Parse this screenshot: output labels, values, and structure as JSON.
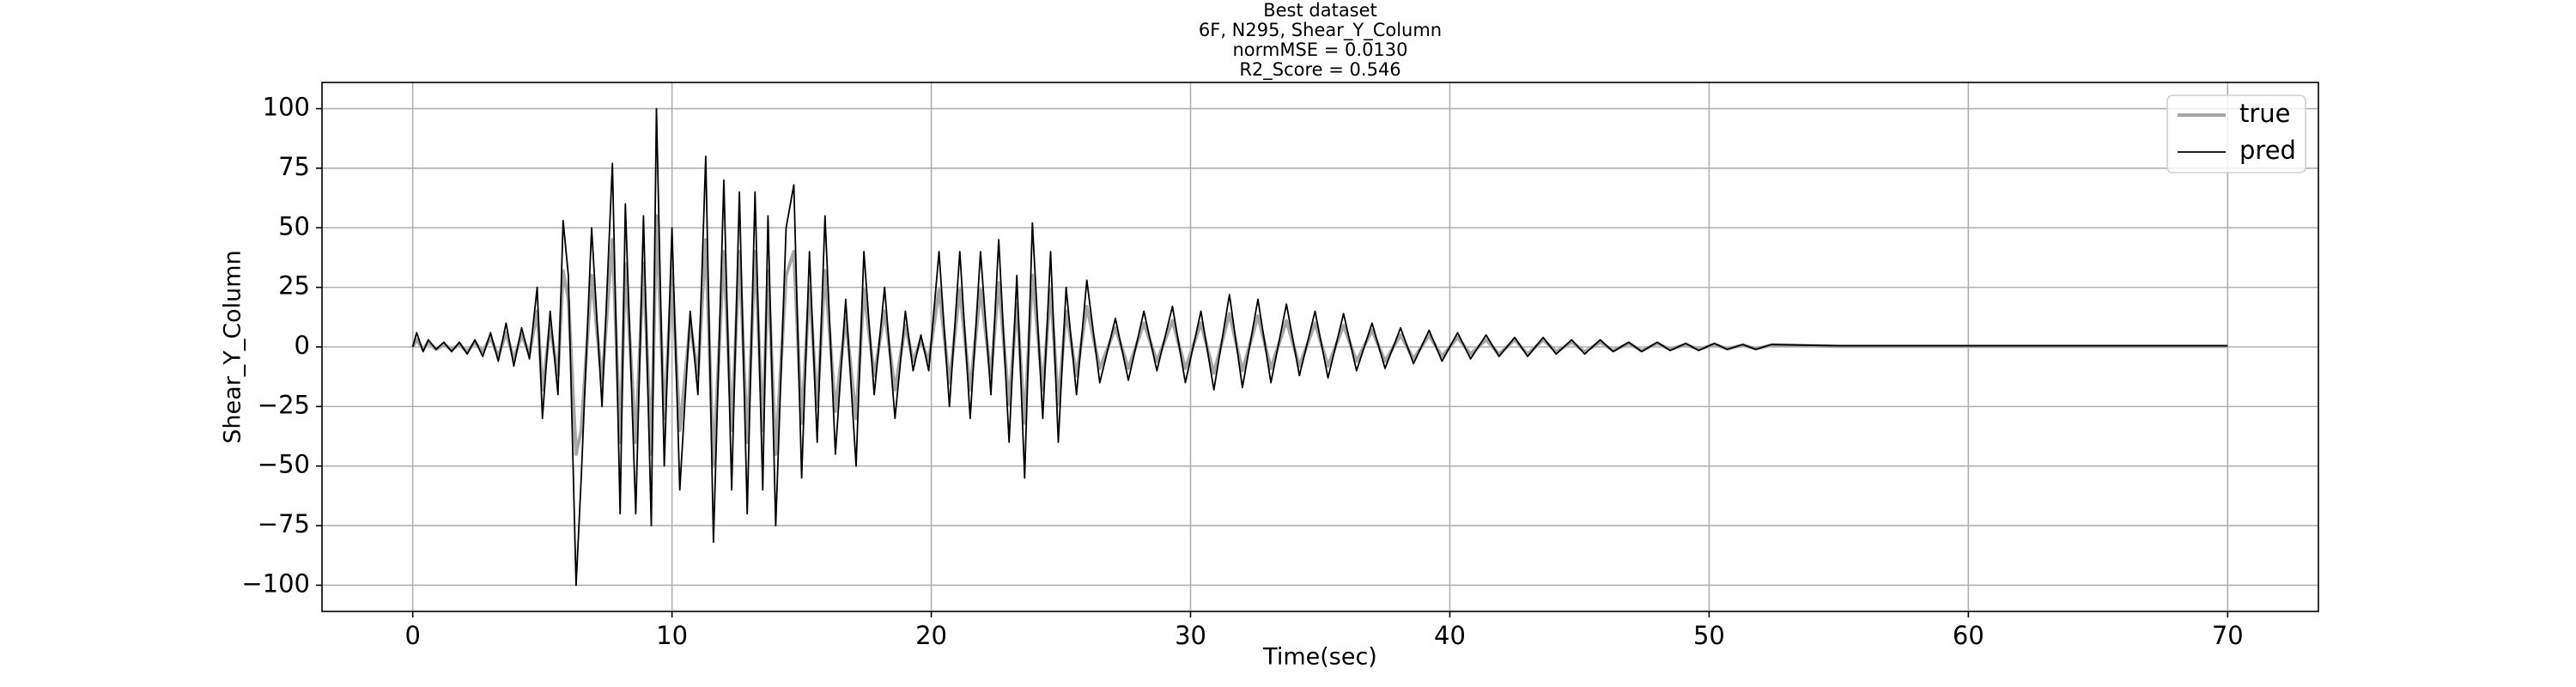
{
  "chart_data": {
    "type": "line",
    "title_lines": [
      "Best dataset",
      "6F, N295, Shear_Y_Column",
      "normMSE = 0.0130",
      "R2_Score = 0.546"
    ],
    "xlabel": "Time(sec)",
    "ylabel": "Shear_Y_Column",
    "x": [
      0,
      0.15,
      0.4,
      0.6,
      0.9,
      1.2,
      1.5,
      1.8,
      2.1,
      2.4,
      2.7,
      3.0,
      3.3,
      3.6,
      3.9,
      4.2,
      4.5,
      4.8,
      5.0,
      5.3,
      5.6,
      5.8,
      6.0,
      6.3,
      6.5,
      6.9,
      7.3,
      7.7,
      8.0,
      8.2,
      8.6,
      8.9,
      9.2,
      9.4,
      9.7,
      10.0,
      10.3,
      10.7,
      11.0,
      11.3,
      11.6,
      12.0,
      12.3,
      12.6,
      12.9,
      13.2,
      13.5,
      13.7,
      14.0,
      14.4,
      14.7,
      15.0,
      15.3,
      15.6,
      15.9,
      16.3,
      16.7,
      17.1,
      17.4,
      17.8,
      18.2,
      18.6,
      19.0,
      19.3,
      19.6,
      19.9,
      20.3,
      20.7,
      21.1,
      21.5,
      21.9,
      22.3,
      22.6,
      23.0,
      23.3,
      23.6,
      23.9,
      24.3,
      24.6,
      24.9,
      25.2,
      25.6,
      26.0,
      26.5,
      27.1,
      27.6,
      28.2,
      28.7,
      29.3,
      29.8,
      30.4,
      30.9,
      31.5,
      32.0,
      32.6,
      33.1,
      33.7,
      34.2,
      34.8,
      35.3,
      35.9,
      36.4,
      37.0,
      37.5,
      38.1,
      38.6,
      39.2,
      39.7,
      40.3,
      40.8,
      41.4,
      41.9,
      42.5,
      43.0,
      43.6,
      44.1,
      44.7,
      45.2,
      45.8,
      46.3,
      46.9,
      47.4,
      48.0,
      48.5,
      49.1,
      49.6,
      50.2,
      50.7,
      51.3,
      51.8,
      52.4,
      55,
      60,
      65,
      70
    ],
    "series": [
      {
        "name": "true",
        "color": "#a6a6a6",
        "width": 4,
        "values": [
          0,
          3,
          -1,
          2,
          -1,
          1,
          -1,
          1,
          -2,
          2,
          -2,
          4,
          -4,
          6,
          -5,
          5,
          -3,
          15,
          -18,
          9,
          -12,
          32,
          20,
          -45,
          -35,
          30,
          -15,
          45,
          -40,
          35,
          -40,
          35,
          -45,
          55,
          -30,
          30,
          -35,
          10,
          -12,
          45,
          -50,
          40,
          -35,
          40,
          -40,
          40,
          -35,
          32,
          -45,
          30,
          40,
          -32,
          25,
          -25,
          32,
          -27,
          12,
          -30,
          24,
          -12,
          15,
          -18,
          9,
          -6,
          3,
          -6,
          24,
          -15,
          24,
          -18,
          24,
          -12,
          27,
          -24,
          18,
          -32,
          30,
          -18,
          24,
          -24,
          15,
          -12,
          17,
          -9,
          8,
          -9,
          10,
          -6,
          11,
          -9,
          10,
          -11,
          14,
          -10,
          13,
          -9,
          11,
          -8,
          10,
          -8,
          9,
          -6,
          7,
          -6,
          5,
          -5,
          5,
          -4,
          4,
          -3,
          3,
          -3,
          3,
          -3,
          3,
          -2,
          2,
          -2,
          2,
          -1.5,
          1.5,
          -1.5,
          1.5,
          -1,
          1,
          -1,
          1,
          -0.8,
          0.8,
          -0.8,
          0.8,
          0.3,
          0.3,
          0.3,
          0.3
        ]
      },
      {
        "name": "pred",
        "color": "#000000",
        "width": 1.8,
        "values": [
          0,
          6,
          -2,
          3,
          -1,
          2,
          -2,
          2,
          -3,
          3,
          -4,
          6,
          -6,
          10,
          -8,
          8,
          -5,
          25,
          -30,
          15,
          -20,
          53,
          30,
          -100,
          -55,
          50,
          -25,
          77,
          -70,
          60,
          -70,
          55,
          -75,
          100,
          -50,
          50,
          -60,
          15,
          -20,
          80,
          -82,
          70,
          -60,
          65,
          -70,
          65,
          -60,
          55,
          -75,
          50,
          68,
          -55,
          40,
          -40,
          55,
          -45,
          20,
          -50,
          40,
          -20,
          25,
          -30,
          15,
          -10,
          5,
          -10,
          40,
          -25,
          40,
          -30,
          40,
          -20,
          45,
          -40,
          30,
          -55,
          52,
          -30,
          40,
          -40,
          25,
          -20,
          28,
          -15,
          12,
          -14,
          15,
          -10,
          17,
          -15,
          15,
          -18,
          22,
          -17,
          20,
          -15,
          18,
          -12,
          15,
          -13,
          14,
          -10,
          10,
          -9,
          8,
          -7,
          7,
          -6,
          6,
          -5,
          5,
          -4,
          4,
          -4,
          4,
          -3,
          3,
          -3,
          3,
          -2,
          2,
          -2,
          2,
          -1.5,
          1.5,
          -1.5,
          1.5,
          -1,
          1,
          -1,
          1,
          0.5,
          0.5,
          0.5,
          0.5
        ]
      }
    ],
    "xlim": [
      -3.5,
      73.5
    ],
    "xticks": [
      0,
      10,
      20,
      30,
      40,
      50,
      60,
      70
    ],
    "ylim": [
      -111,
      111
    ],
    "yticks": [
      {
        "value": -100,
        "label": "−100"
      },
      {
        "value": -75,
        "label": "−75"
      },
      {
        "value": -50,
        "label": "−50"
      },
      {
        "value": -25,
        "label": "−25"
      },
      0,
      25,
      50,
      75,
      100
    ],
    "grid": true,
    "legend": "upper right"
  }
}
